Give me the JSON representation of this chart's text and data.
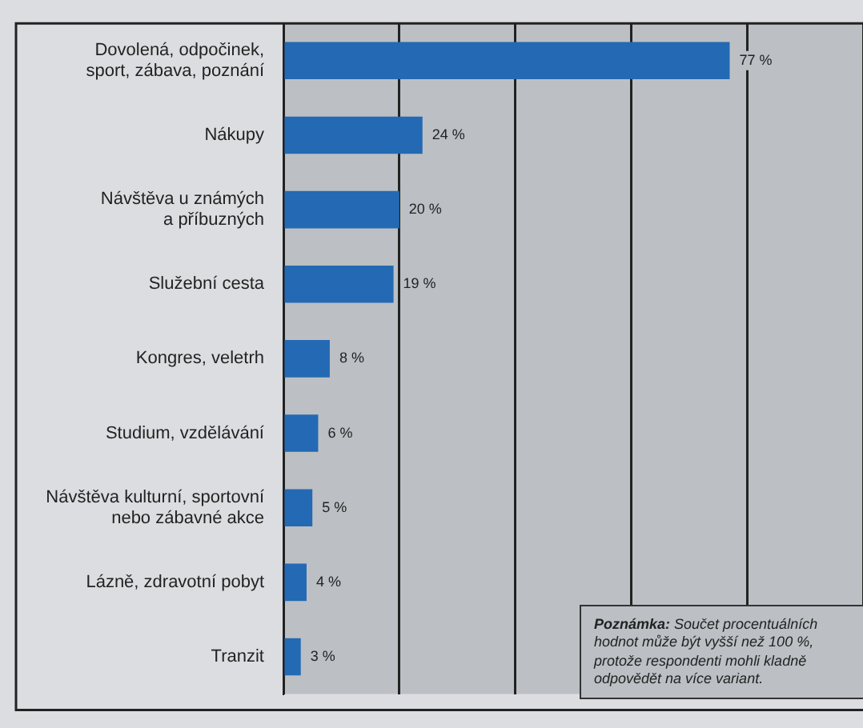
{
  "chart_data": {
    "type": "bar",
    "orientation": "horizontal",
    "categories": [
      "Dovolená, odpočinek,\nsport, zábava, poznání",
      "Nákupy",
      "Návštěva u známých\na příbuzných",
      "Služební cesta",
      "Kongres, veletrh",
      "Studium, vzdělávání",
      "Návštěva kulturní, sportovní\nnebo zábavné akce",
      "Lázně, zdravotní pobyt",
      "Tranzit"
    ],
    "values": [
      77,
      24,
      20,
      19,
      8,
      6,
      5,
      4,
      3
    ],
    "value_labels": [
      "77 %",
      "24 %",
      "20 %",
      "19 %",
      "8 %",
      "6 %",
      "5 %",
      "4 %",
      "3 %"
    ],
    "color": "#2469b3",
    "grid": "x",
    "tick_labels": "y",
    "legend": false,
    "annotations": [
      "Poznámka: Součet procentuálních hodnot může být vyšší než 100 %, protože respondenti mohli kladně odpovědět na více variant."
    ]
  }
}
